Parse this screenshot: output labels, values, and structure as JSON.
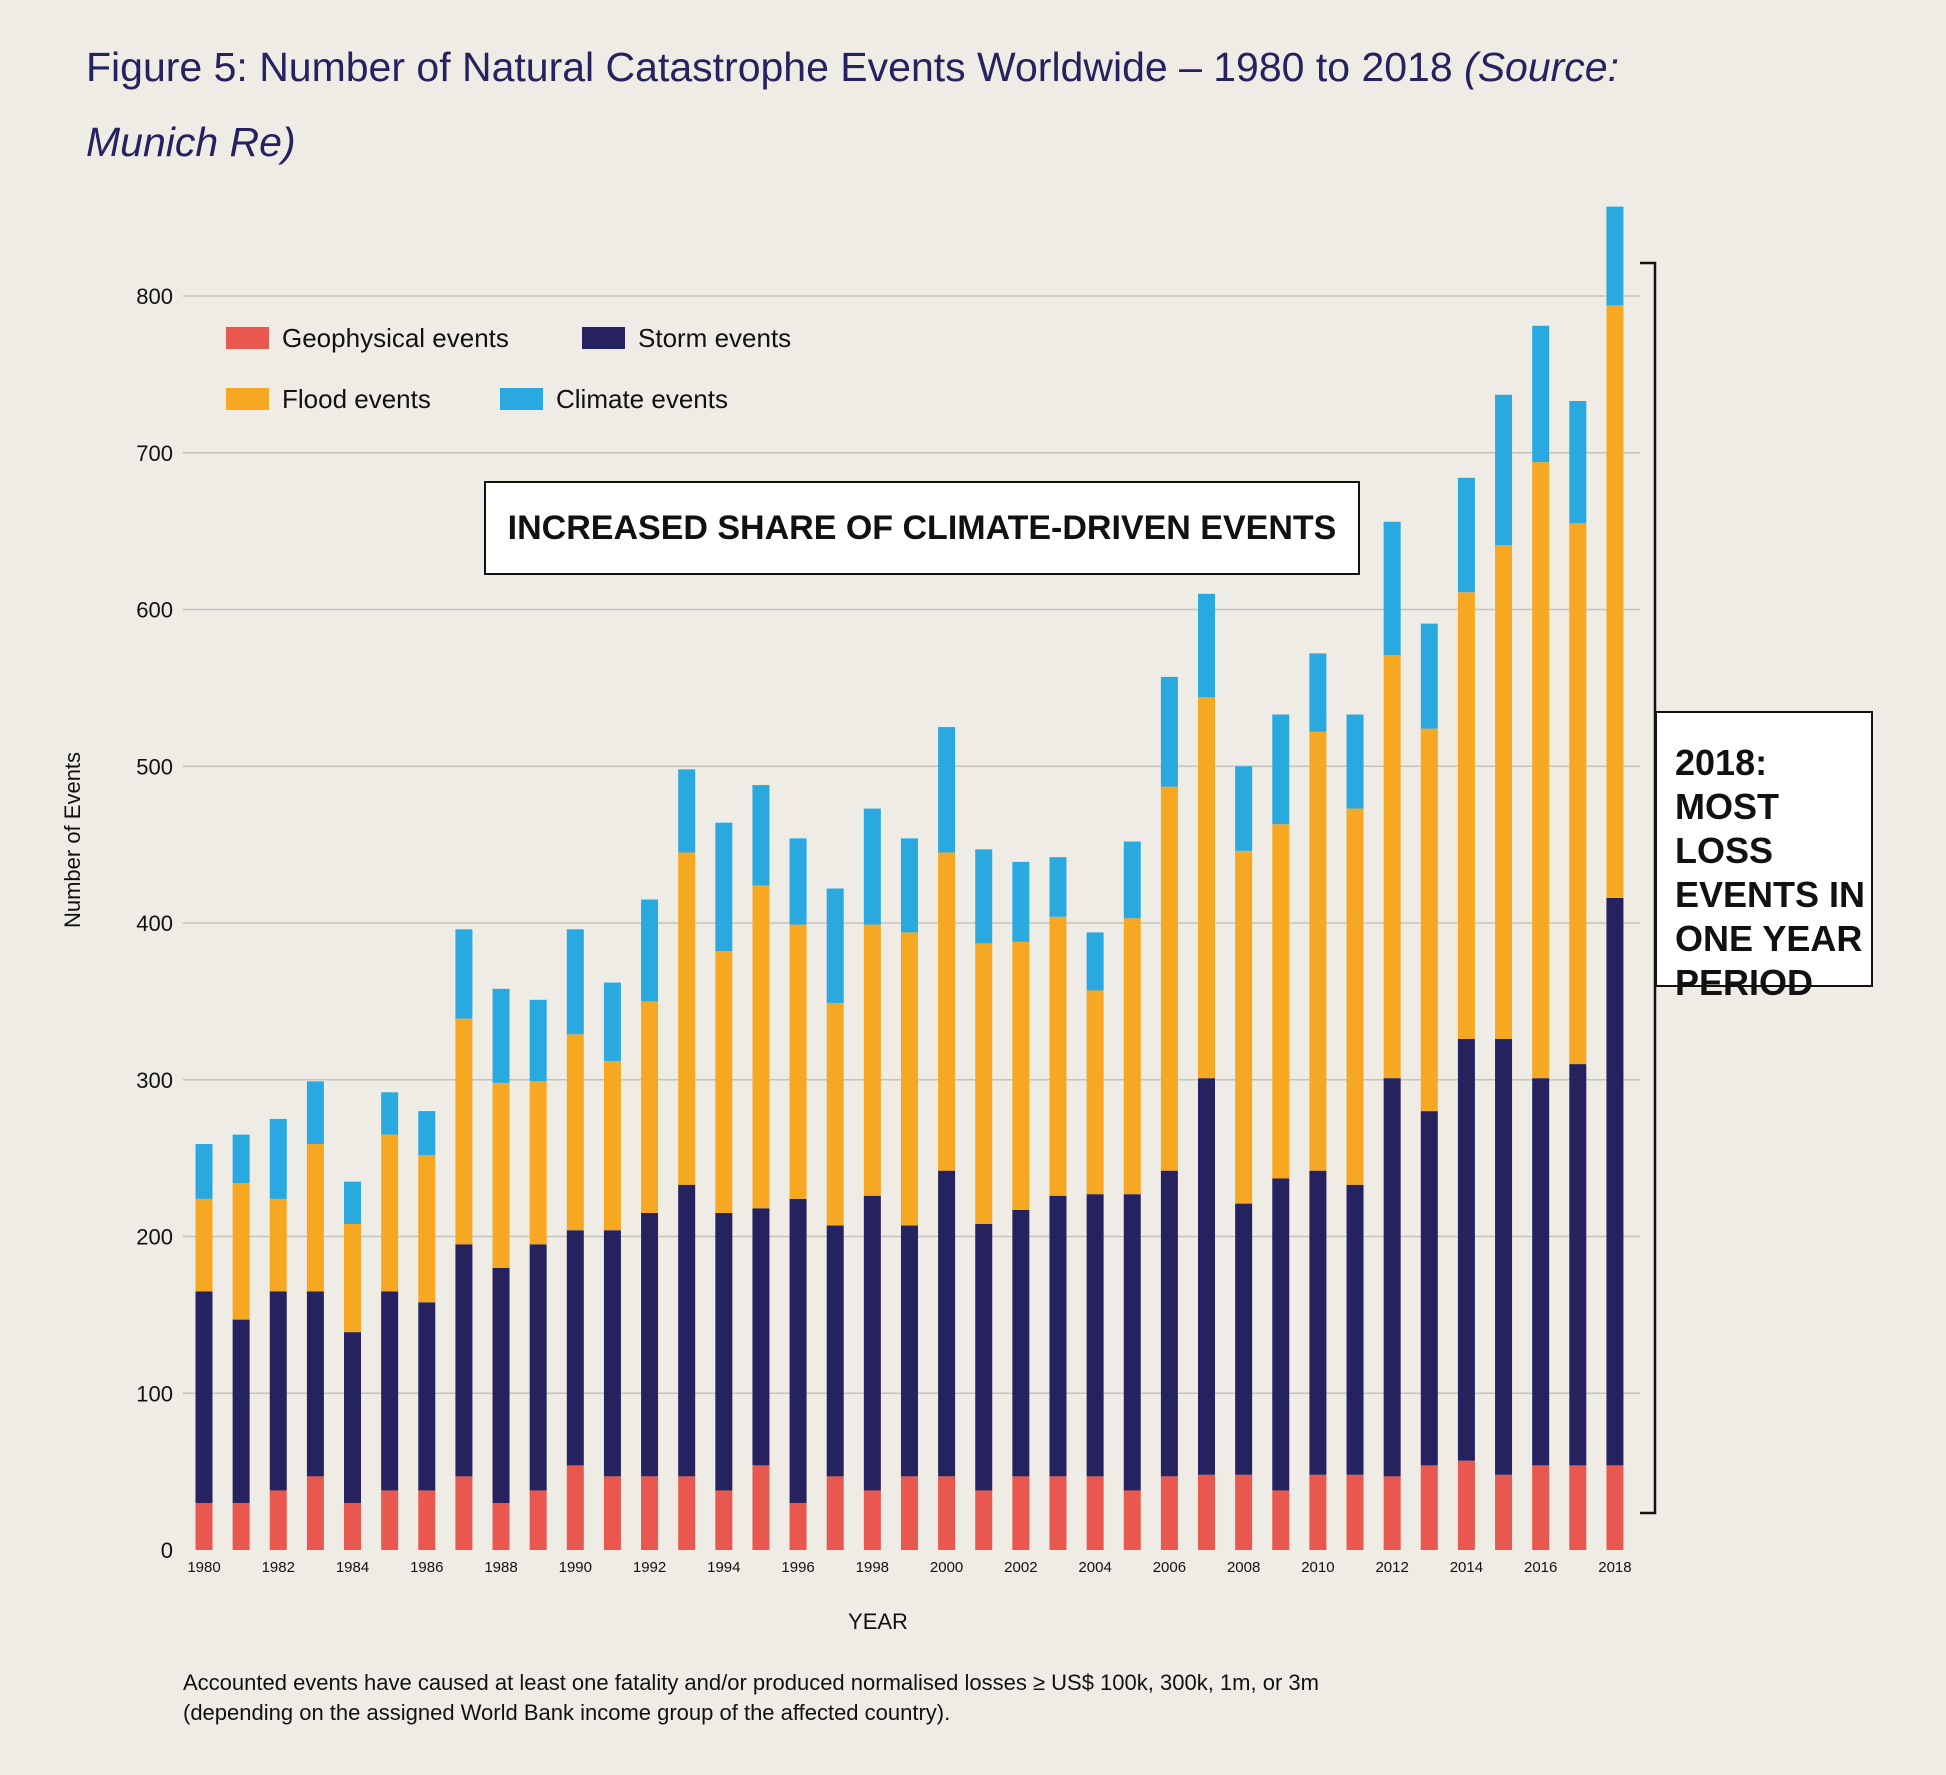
{
  "title": {
    "main": "Figure 5: Number of Natural Catastrophe Events Worldwide – 1980 to 2018 ",
    "source": "(Source: Munich Re)"
  },
  "annotations": {
    "climate": "INCREASED SHARE OF CLIMATE-DRIVEN EVENTS",
    "record_lines": [
      "2018:",
      "MOST LOSS",
      "EVENTS IN",
      "ONE YEAR",
      "PERIOD"
    ]
  },
  "footnote": {
    "line1": "Accounted events have caused at least one fatality and/or produced normalised losses ≥ US$ 100k, 300k, 1m, or 3m",
    "line2": "(depending on the assigned World Bank income group of the affected country)."
  },
  "colors": {
    "geophysical": "#e8584e",
    "storm": "#25225f",
    "flood": "#f7a823",
    "climate": "#2aa9e0",
    "grid": "#c6c3bd",
    "background": "#efece6"
  },
  "chart_data": {
    "type": "bar",
    "stacked": true,
    "xlabel": "YEAR",
    "ylabel": "Number of Events",
    "ylim": [
      0,
      850
    ],
    "yticks": [
      0,
      100,
      200,
      300,
      400,
      500,
      600,
      700,
      800
    ],
    "grid": true,
    "legend_position": "top-left",
    "categories": [
      1980,
      1981,
      1982,
      1983,
      1984,
      1985,
      1986,
      1987,
      1988,
      1989,
      1990,
      1991,
      1992,
      1993,
      1994,
      1995,
      1996,
      1997,
      1998,
      1999,
      2000,
      2001,
      2002,
      2003,
      2004,
      2005,
      2006,
      2007,
      2008,
      2009,
      2010,
      2011,
      2012,
      2013,
      2014,
      2015,
      2016,
      2017,
      2018
    ],
    "x_tick_labels": [
      "1980",
      "",
      "1982",
      "",
      "1984",
      "",
      "1986",
      "",
      "1988",
      "",
      "1990",
      "",
      "1992",
      "",
      "1994",
      "",
      "1996",
      "",
      "1998",
      "",
      "2000",
      "",
      "2002",
      "",
      "2004",
      "",
      "2006",
      "",
      "2008",
      "",
      "2010",
      "",
      "2012",
      "",
      "2014",
      "",
      "2016",
      "",
      "2018"
    ],
    "series": [
      {
        "name": "Geophysical events",
        "color_key": "geophysical",
        "values": [
          30,
          30,
          38,
          47,
          30,
          38,
          38,
          47,
          30,
          38,
          54,
          47,
          47,
          47,
          38,
          54,
          30,
          47,
          38,
          47,
          47,
          38,
          47,
          47,
          47,
          38,
          47,
          48,
          48,
          38,
          48,
          48,
          47,
          54,
          57,
          48,
          54,
          54,
          54
        ]
      },
      {
        "name": "Storm events",
        "color_key": "storm",
        "values": [
          135,
          117,
          127,
          118,
          109,
          127,
          120,
          148,
          150,
          157,
          150,
          157,
          168,
          186,
          177,
          164,
          194,
          160,
          188,
          160,
          195,
          170,
          170,
          179,
          180,
          189,
          195,
          253,
          173,
          199,
          194,
          185,
          254,
          226,
          269,
          278,
          247,
          256,
          362
        ]
      },
      {
        "name": "Flood events",
        "color_key": "flood",
        "values": [
          59,
          87,
          59,
          94,
          69,
          100,
          94,
          144,
          118,
          104,
          125,
          108,
          135,
          212,
          167,
          206,
          175,
          142,
          173,
          187,
          203,
          179,
          171,
          178,
          130,
          176,
          245,
          243,
          225,
          226,
          280,
          240,
          270,
          244,
          285,
          315,
          393,
          345,
          378
        ]
      },
      {
        "name": "Climate events",
        "color_key": "climate",
        "values": [
          35,
          31,
          51,
          40,
          27,
          27,
          28,
          57,
          60,
          52,
          67,
          50,
          65,
          53,
          82,
          64,
          55,
          73,
          74,
          60,
          80,
          60,
          51,
          38,
          37,
          49,
          70,
          66,
          54,
          70,
          50,
          60,
          85,
          67,
          73,
          96,
          87,
          78,
          63
        ]
      }
    ]
  }
}
